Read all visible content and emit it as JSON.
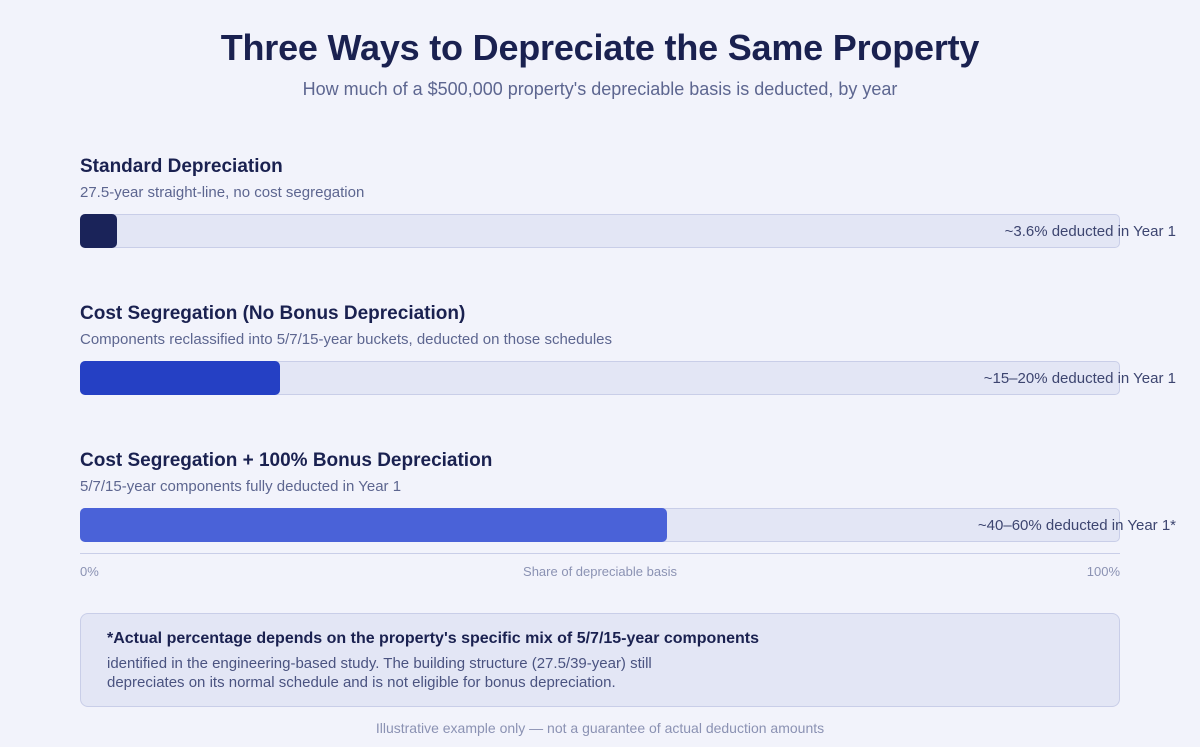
{
  "header": {
    "title": "Three Ways to Depreciate the Same Property",
    "subtitle": "How much of a $500,000 property's depreciable basis is deducted, by year"
  },
  "chart_data": {
    "type": "bar",
    "orientation": "horizontal",
    "xlabel": "Share of depreciable basis",
    "xlim": [
      0,
      100
    ],
    "x_ticks": [
      "0%",
      "100%"
    ],
    "rows": [
      {
        "title": "Standard Depreciation",
        "description": "27.5-year straight-line, no cost segregation",
        "value": 3.6,
        "label": "~3.6% deducted in Year 1",
        "color": "#1a2359"
      },
      {
        "title": "Cost Segregation (No Bonus Depreciation)",
        "description": "Components reclassified into 5/7/15-year buckets, deducted on those schedules",
        "value": 19.2,
        "label": "~15–20% deducted in Year 1",
        "color": "#2540c4"
      },
      {
        "title": "Cost Segregation + 100% Bonus Depreciation",
        "description": "5/7/15-year components fully deducted in Year 1",
        "value": 56.4,
        "label": "~40–60% deducted in Year 1*",
        "color": "#4a62d8"
      }
    ]
  },
  "note": {
    "heading": "*Actual percentage depends on the property's specific mix of 5/7/15-year components",
    "body": "identified in the engineering-based study. The building structure (27.5/39-year) still depreciates on its normal schedule and is not eligible for bonus depreciation."
  },
  "footer": "Illustrative example only — not a guarantee of actual deduction amounts"
}
